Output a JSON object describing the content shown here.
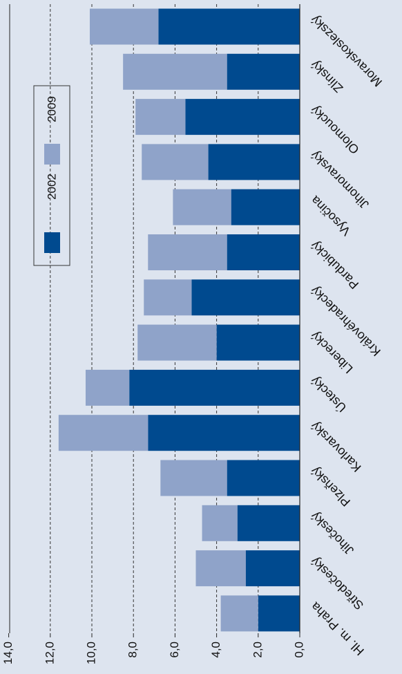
{
  "chart_data": {
    "type": "bar",
    "stacked": true,
    "orientation": "horizontal",
    "categories": [
      "Moravskoslezský",
      "Zlínský",
      "Olomoucký",
      "Jihomoravský",
      "Vysočina",
      "Pardubický",
      "Královéhradecký",
      "Liberecký",
      "Ústecký",
      "Karlovarský",
      "Plzeňský",
      "Jihočeský",
      "Středočeský",
      "Hl. m. Praha"
    ],
    "series": [
      {
        "name": "2002",
        "color": "#004a8f",
        "values": [
          6.8,
          3.5,
          5.5,
          4.4,
          3.3,
          3.5,
          5.2,
          4.0,
          8.2,
          7.3,
          3.5,
          3.0,
          2.6,
          2.0
        ]
      },
      {
        "name": "2009",
        "color": "#8fa3c9",
        "values": [
          3.3,
          5.0,
          2.4,
          3.2,
          2.8,
          3.8,
          2.3,
          3.8,
          2.1,
          4.3,
          3.2,
          1.7,
          2.4,
          1.8
        ]
      }
    ],
    "value_axis": {
      "range": [
        0,
        14
      ],
      "ticks": [
        "0,0",
        "2,0",
        "4,0",
        "6,0",
        "8,0",
        "10,0",
        "12,0",
        "14,0"
      ],
      "gridlines": "dashed"
    },
    "legend": {
      "placement": "top-left",
      "items": [
        "2002",
        "2009"
      ]
    }
  }
}
